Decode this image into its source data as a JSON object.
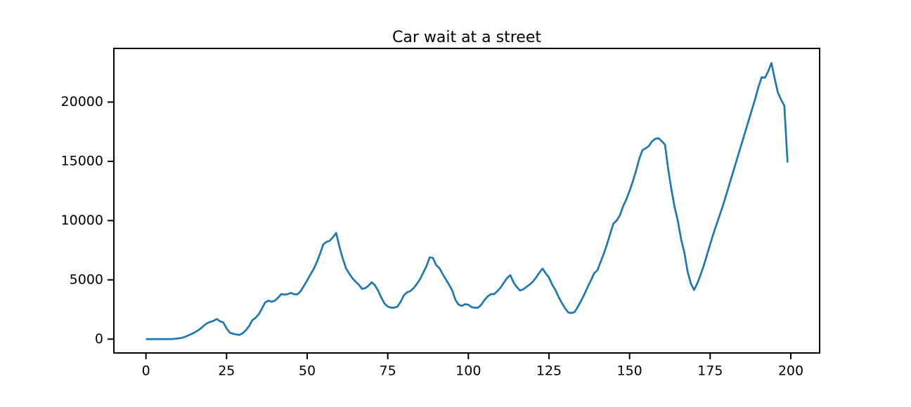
{
  "chart_data": {
    "type": "line",
    "title": "Car wait at a street",
    "x": [
      0,
      1,
      2,
      3,
      4,
      5,
      6,
      7,
      8,
      9,
      10,
      11,
      12,
      13,
      14,
      15,
      16,
      17,
      18,
      19,
      20,
      21,
      22,
      23,
      24,
      25,
      26,
      27,
      28,
      29,
      30,
      31,
      32,
      33,
      34,
      35,
      36,
      37,
      38,
      39,
      40,
      41,
      42,
      43,
      44,
      45,
      46,
      47,
      48,
      49,
      50,
      51,
      52,
      53,
      54,
      55,
      56,
      57,
      58,
      59,
      60,
      61,
      62,
      63,
      64,
      65,
      66,
      67,
      68,
      69,
      70,
      71,
      72,
      73,
      74,
      75,
      76,
      77,
      78,
      79,
      80,
      81,
      82,
      83,
      84,
      85,
      86,
      87,
      88,
      89,
      90,
      91,
      92,
      93,
      94,
      95,
      96,
      97,
      98,
      99,
      100,
      101,
      102,
      103,
      104,
      105,
      106,
      107,
      108,
      109,
      110,
      111,
      112,
      113,
      114,
      115,
      116,
      117,
      118,
      119,
      120,
      121,
      122,
      123,
      124,
      125,
      126,
      127,
      128,
      129,
      130,
      131,
      132,
      133,
      134,
      135,
      136,
      137,
      138,
      139,
      140,
      141,
      142,
      143,
      144,
      145,
      146,
      147,
      148,
      149,
      150,
      151,
      152,
      153,
      154,
      155,
      156,
      157,
      158,
      159,
      160,
      161,
      162,
      163,
      164,
      165,
      166,
      167,
      168,
      169,
      170,
      171,
      172,
      173,
      174,
      175,
      176,
      177,
      178,
      179,
      180,
      181,
      182,
      183,
      184,
      185,
      186,
      187,
      188,
      189,
      190,
      191,
      192,
      193,
      194,
      195,
      196,
      197,
      198,
      199
    ],
    "series": [
      {
        "color": "#1f77b4",
        "values": [
          0,
          0,
          0,
          0,
          0,
          0,
          0,
          0,
          10,
          30,
          60,
          100,
          180,
          300,
          420,
          550,
          720,
          900,
          1150,
          1350,
          1450,
          1550,
          1700,
          1500,
          1400,
          900,
          550,
          450,
          400,
          350,
          500,
          750,
          1100,
          1600,
          1800,
          2100,
          2600,
          3100,
          3250,
          3150,
          3250,
          3500,
          3800,
          3750,
          3800,
          3900,
          3780,
          3780,
          4050,
          4500,
          4950,
          5450,
          5900,
          6500,
          7200,
          8000,
          8200,
          8300,
          8600,
          8950,
          7800,
          6850,
          6000,
          5550,
          5150,
          4850,
          4600,
          4250,
          4300,
          4500,
          4800,
          4550,
          4100,
          3500,
          3000,
          2750,
          2650,
          2650,
          2750,
          3150,
          3700,
          3950,
          4050,
          4300,
          4650,
          5050,
          5600,
          6150,
          6900,
          6850,
          6250,
          6000,
          5500,
          5050,
          4600,
          4100,
          3300,
          2900,
          2800,
          2950,
          2900,
          2700,
          2650,
          2650,
          2900,
          3300,
          3600,
          3800,
          3800,
          4050,
          4350,
          4750,
          5150,
          5400,
          4800,
          4400,
          4100,
          4200,
          4400,
          4600,
          4850,
          5200,
          5600,
          5950,
          5550,
          5200,
          4600,
          4150,
          3550,
          3050,
          2600,
          2250,
          2200,
          2300,
          2750,
          3250,
          3800,
          4400,
          4950,
          5550,
          5800,
          6500,
          7200,
          8000,
          8900,
          9750,
          10000,
          10450,
          11200,
          11800,
          12500,
          13300,
          14200,
          15200,
          15950,
          16100,
          16300,
          16700,
          16900,
          16950,
          16700,
          16400,
          14300,
          12600,
          11100,
          9950,
          8400,
          7300,
          5700,
          4700,
          4150,
          4700,
          5400,
          6200,
          7100,
          8000,
          8900,
          9700,
          10500,
          11300,
          12200,
          13100,
          14000,
          14900,
          15800,
          16700,
          17600,
          18500,
          19400,
          20300,
          21300,
          22100,
          22050,
          22600,
          23300,
          22000,
          20800,
          20200,
          19700,
          14900
        ]
      }
    ],
    "xlim": [
      -9.95,
      208.95
    ],
    "ylim": [
      -1168,
      24528
    ],
    "xticks": [
      0,
      25,
      50,
      75,
      100,
      125,
      150,
      175,
      200
    ],
    "yticks": [
      0,
      5000,
      10000,
      15000,
      20000
    ]
  }
}
